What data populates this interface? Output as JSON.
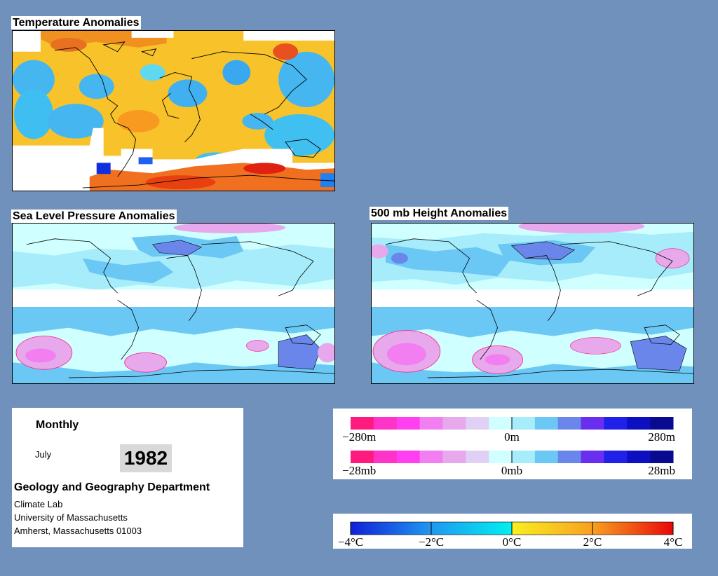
{
  "panels": {
    "temperature": {
      "title": "Temperature Anomalies"
    },
    "slp": {
      "title": "Sea Level Pressure Anomalies"
    },
    "height500": {
      "title": "500 mb Height Anomalies"
    }
  },
  "info": {
    "period": "Monthly",
    "month": "July",
    "year": "1982",
    "department": "Geology and Geography Department",
    "lab": "Climate Lab",
    "university": "University of Massachusetts",
    "address": "Amherst, Massachusetts 01003"
  },
  "legends": {
    "height": {
      "min": "−280m",
      "mid": "0m",
      "max": "280m"
    },
    "pressure": {
      "min": "−28mb",
      "mid": "0mb",
      "max": "28mb"
    },
    "temperature": {
      "t1": "−4°C",
      "t2": "−2°C",
      "t3": "0°C",
      "t4": "2°C",
      "t5": "4°C"
    }
  },
  "colors": {
    "background": "#7191bd",
    "pressure_scale": [
      "#ff1a80",
      "#ff33c8",
      "#ff3ff0",
      "#f27ef2",
      "#e7a8ec",
      "#e0d0f6",
      "#cfffff",
      "#a7ecfa",
      "#6bc8f4",
      "#6a86ea",
      "#6a2ef0",
      "#2020e8",
      "#0c10c0",
      "#0a0a90"
    ],
    "temperature_scale": [
      "#1030e0",
      "#2080f0",
      "#40b8f0",
      "#60e0f0",
      "#f8f040",
      "#f8c020",
      "#f89020",
      "#f05010",
      "#e01010"
    ]
  }
}
